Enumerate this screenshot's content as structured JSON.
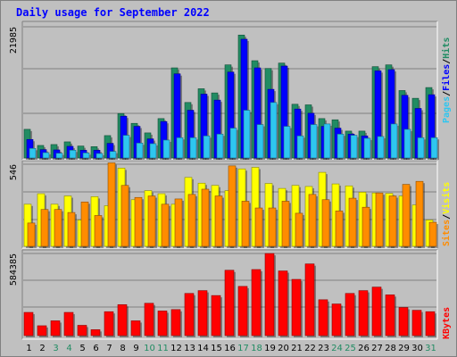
{
  "title": "Daily usage for September 2022",
  "colors": {
    "hits": "#218c63",
    "files": "#0000ff",
    "pages": "#2ec6f0",
    "visits": "#ffff00",
    "sites": "#ff8c00",
    "kbytes": "#ff0000",
    "weekend_day": "#218c63",
    "weekday": "#000000"
  },
  "chart_data": [
    {
      "type": "bar",
      "name_panel": "hits-files-pages",
      "x": [
        "1",
        "2",
        "3",
        "4",
        "5",
        "6",
        "7",
        "8",
        "9",
        "10",
        "11",
        "12",
        "13",
        "14",
        "15",
        "16",
        "17",
        "18",
        "19",
        "20",
        "21",
        "22",
        "23",
        "24",
        "25",
        "26",
        "27",
        "28",
        "29",
        "30",
        "31"
      ],
      "ymax_label": "21985",
      "ylim": [
        0,
        21985
      ],
      "series": [
        {
          "name": "Hits",
          "values": [
            4800,
            2100,
            2250,
            2700,
            2000,
            1900,
            3750,
            7450,
            5800,
            4200,
            6600,
            15100,
            9300,
            11600,
            10900,
            15600,
            20600,
            16300,
            15000,
            15900,
            9000,
            8900,
            6600,
            6400,
            4500,
            4500,
            15300,
            15600,
            11300,
            10000,
            11800
          ]
        },
        {
          "name": "Files",
          "values": [
            3100,
            1400,
            1350,
            1950,
            1300,
            1300,
            2450,
            7000,
            5300,
            3200,
            6100,
            14100,
            8000,
            10700,
            9700,
            14400,
            19900,
            15100,
            11500,
            15400,
            8200,
            7500,
            5300,
            5000,
            4000,
            3700,
            14600,
            14800,
            10500,
            8300,
            10600
          ]
        },
        {
          "name": "Pages",
          "values": [
            1600,
            900,
            800,
            1300,
            850,
            750,
            1100,
            3800,
            2500,
            2400,
            3000,
            3400,
            3400,
            3700,
            4000,
            5000,
            8000,
            5600,
            9300,
            5300,
            3700,
            5600,
            5700,
            4000,
            3800,
            3300,
            3600,
            5700,
            4800,
            3400,
            3400
          ]
        }
      ],
      "legend": [
        "Pages",
        "Files",
        "Hits"
      ]
    },
    {
      "type": "bar",
      "name_panel": "visits-sites",
      "x": [
        "1",
        "2",
        "3",
        "4",
        "5",
        "6",
        "7",
        "8",
        "9",
        "10",
        "11",
        "12",
        "13",
        "14",
        "15",
        "16",
        "17",
        "18",
        "19",
        "20",
        "21",
        "22",
        "23",
        "24",
        "25",
        "26",
        "27",
        "28",
        "29",
        "30",
        "31"
      ],
      "ymax_label": "546",
      "ylim": [
        0,
        546
      ],
      "series": [
        {
          "name": "Visits",
          "values": [
            280,
            350,
            280,
            335,
            175,
            330,
            270,
            520,
            310,
            370,
            350,
            280,
            458,
            420,
            405,
            370,
            515,
            525,
            418,
            385,
            405,
            398,
            492,
            415,
            402,
            360,
            355,
            352,
            335,
            275,
            175
          ]
        },
        {
          "name": "Sites",
          "values": [
            155,
            245,
            245,
            225,
            295,
            205,
            555,
            405,
            325,
            335,
            280,
            315,
            345,
            380,
            335,
            535,
            300,
            255,
            255,
            300,
            220,
            345,
            310,
            235,
            320,
            260,
            355,
            335,
            412,
            432,
            160
          ]
        }
      ],
      "legend": [
        "Sites",
        "Visits"
      ]
    },
    {
      "type": "bar",
      "name_panel": "kbytes",
      "x": [
        "1",
        "2",
        "3",
        "4",
        "5",
        "6",
        "7",
        "8",
        "9",
        "10",
        "11",
        "12",
        "13",
        "14",
        "15",
        "16",
        "17",
        "18",
        "19",
        "20",
        "21",
        "22",
        "23",
        "24",
        "25",
        "26",
        "27",
        "28",
        "29",
        "30",
        "31"
      ],
      "ymax_label": "584385",
      "ylim": [
        0,
        584385
      ],
      "series": [
        {
          "name": "KBytes",
          "values": [
            165000,
            70000,
            105000,
            165000,
            73000,
            42000,
            170000,
            220000,
            105000,
            230000,
            175000,
            185000,
            300000,
            320000,
            285000,
            465000,
            350000,
            470000,
            584000,
            460000,
            400000,
            510000,
            255000,
            225000,
            300000,
            320000,
            345000,
            290000,
            200000,
            180000,
            170000
          ]
        }
      ],
      "legend": [
        "KBytes"
      ]
    }
  ],
  "x_axis": {
    "labels": [
      "1",
      "2",
      "3",
      "4",
      "5",
      "6",
      "7",
      "8",
      "9",
      "10",
      "11",
      "12",
      "13",
      "14",
      "15",
      "16",
      "17",
      "18",
      "19",
      "20",
      "21",
      "22",
      "23",
      "24",
      "25",
      "26",
      "27",
      "28",
      "29",
      "30",
      "31"
    ],
    "weekend": [
      3,
      4,
      10,
      11,
      17,
      18,
      24,
      25,
      31
    ]
  }
}
